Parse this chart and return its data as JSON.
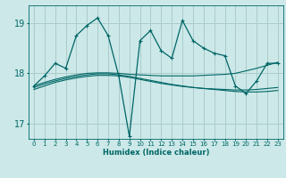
{
  "title": "",
  "xlabel": "Humidex (Indice chaleur)",
  "background_color": "#cce8e8",
  "grid_color": "#aacccc",
  "line_color": "#006666",
  "xlim": [
    -0.5,
    23.5
  ],
  "ylim": [
    16.7,
    19.35
  ],
  "yticks": [
    17,
    18,
    19
  ],
  "xticks": [
    0,
    1,
    2,
    3,
    4,
    5,
    6,
    7,
    8,
    9,
    10,
    11,
    12,
    13,
    14,
    15,
    16,
    17,
    18,
    19,
    20,
    21,
    22,
    23
  ],
  "main_series": [
    17.75,
    17.95,
    18.2,
    18.1,
    18.75,
    18.95,
    19.1,
    18.75,
    17.95,
    16.75,
    18.65,
    18.85,
    18.45,
    18.3,
    19.05,
    18.65,
    18.5,
    18.4,
    18.35,
    17.75,
    17.6,
    17.85,
    18.2,
    18.2
  ],
  "smooth_up": [
    17.75,
    17.82,
    17.88,
    17.93,
    17.97,
    18.0,
    18.01,
    18.01,
    18.0,
    17.98,
    17.97,
    17.96,
    17.95,
    17.95,
    17.95,
    17.95,
    17.96,
    17.97,
    17.98,
    18.0,
    18.05,
    18.1,
    18.16,
    18.22
  ],
  "smooth_flat": [
    17.68,
    17.75,
    17.82,
    17.87,
    17.91,
    17.94,
    17.96,
    17.96,
    17.95,
    17.92,
    17.88,
    17.84,
    17.8,
    17.77,
    17.74,
    17.72,
    17.7,
    17.69,
    17.68,
    17.67,
    17.67,
    17.68,
    17.7,
    17.72
  ],
  "smooth_down": [
    17.72,
    17.79,
    17.85,
    17.9,
    17.94,
    17.97,
    17.99,
    17.99,
    17.97,
    17.94,
    17.9,
    17.86,
    17.82,
    17.78,
    17.75,
    17.72,
    17.7,
    17.68,
    17.66,
    17.64,
    17.63,
    17.63,
    17.64,
    17.66
  ]
}
